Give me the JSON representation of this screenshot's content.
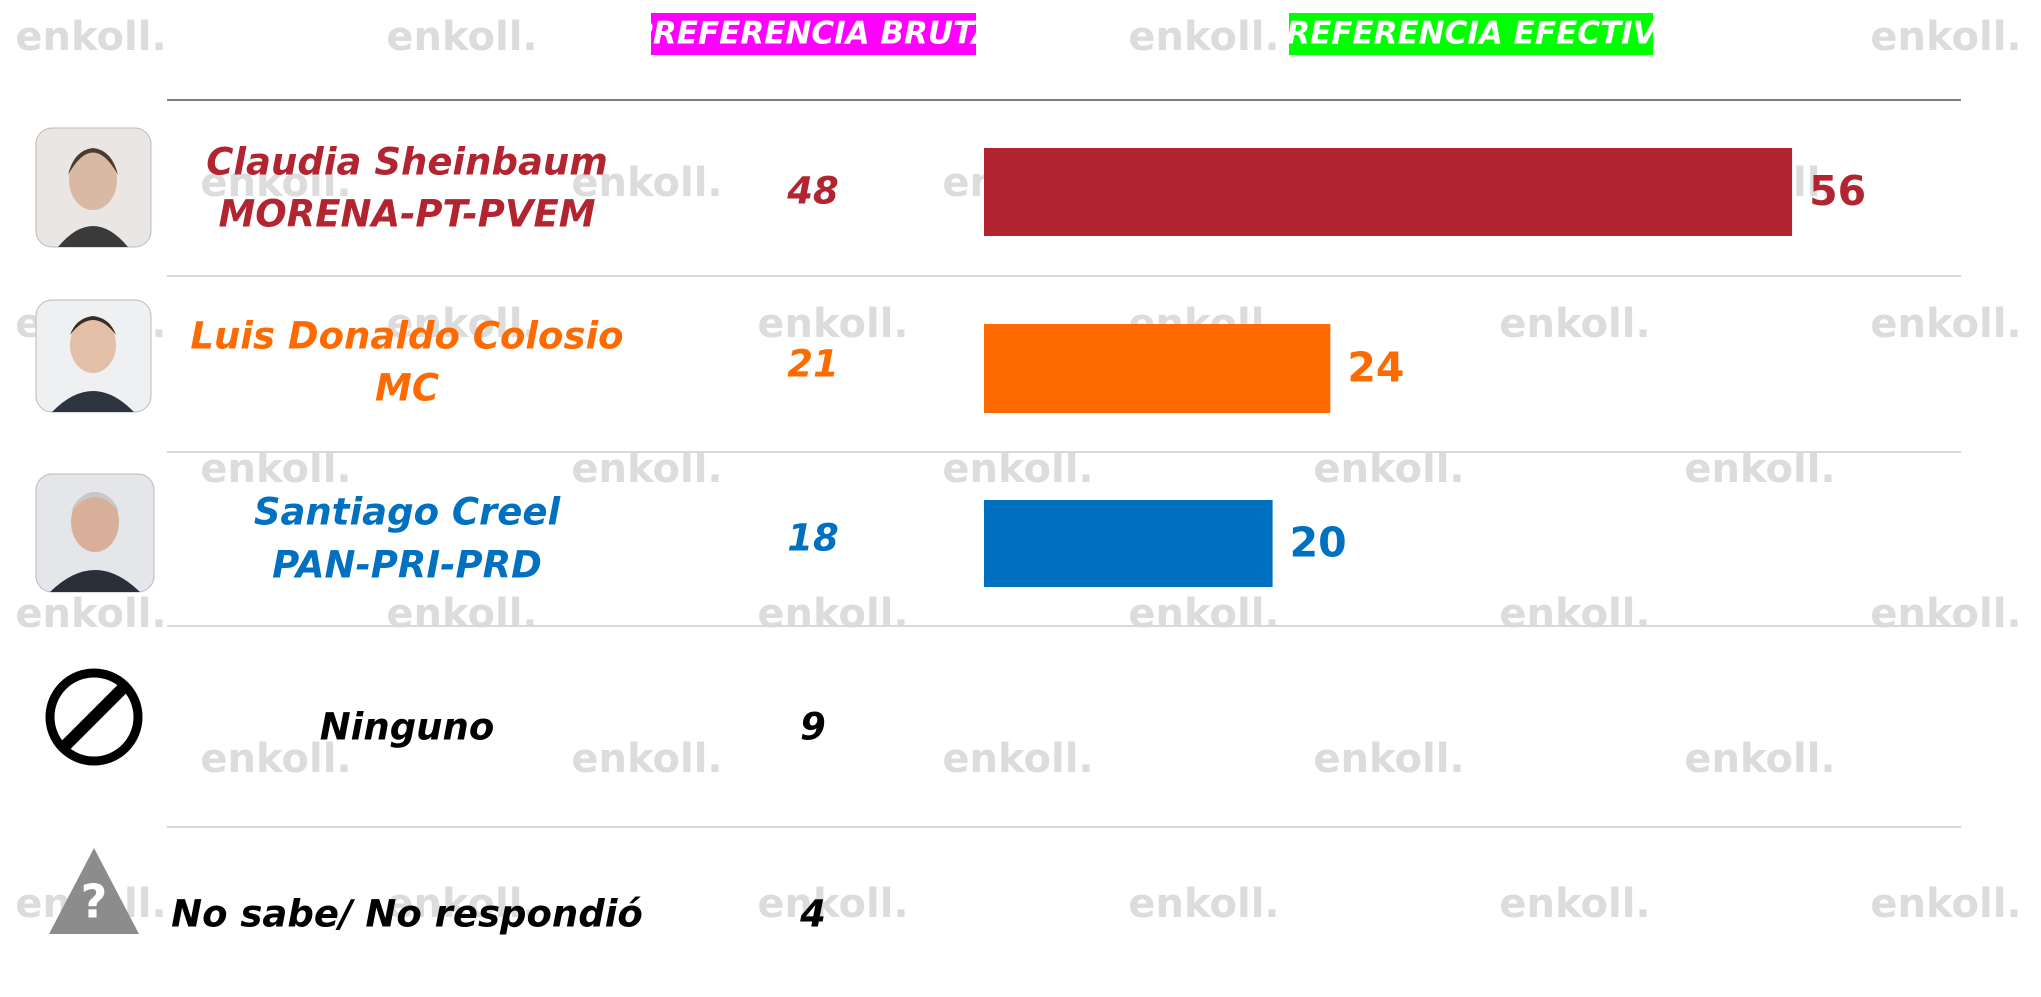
{
  "chart_data": {
    "type": "bar",
    "orientation": "horizontal",
    "watermark": "enkoll.",
    "categories": [
      "Claudia Sheinbaum",
      "Luis Donaldo Colosio",
      "Santiago Creel",
      "Ninguno",
      "No sabe/ No respondió"
    ],
    "parties": [
      "MORENA-PT-PVEM",
      "MC",
      "PAN-PRI-PRD",
      null,
      null
    ],
    "colors": [
      "#b22430",
      "#ff6a00",
      "#0070c0",
      "#000000",
      "#000000"
    ],
    "series": [
      {
        "name": "PREFERENCIA BRUTA",
        "color": "#ff00ff",
        "values": [
          48,
          21,
          18,
          9,
          4
        ]
      },
      {
        "name": "PREFERENCIA EFECTIVA",
        "color": "#00ff00",
        "values": [
          56,
          24,
          20,
          null,
          null
        ]
      }
    ]
  }
}
